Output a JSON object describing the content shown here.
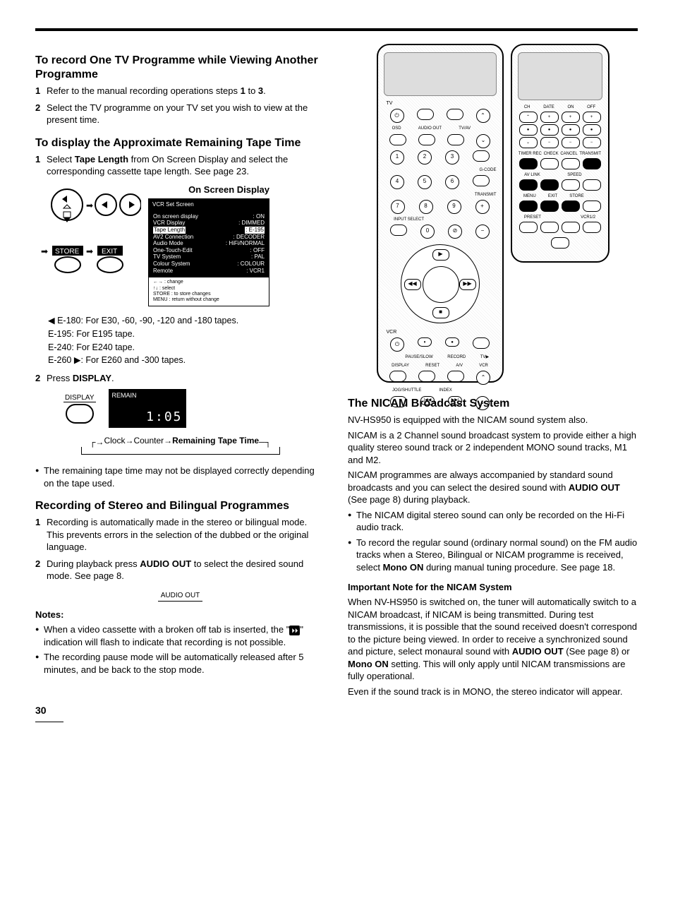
{
  "left": {
    "section1": {
      "title": "To record One TV Programme while Viewing Another Programme",
      "steps": [
        "Refer to the manual recording operations steps <b>1</b> to <b>3</b>.",
        "Select the TV programme on your TV set you wish to view at the present time."
      ]
    },
    "section2": {
      "title": "To display the Approximate Remaining Tape Time",
      "step1": "Select <b>Tape Length</b> from On Screen Display and select the corresponding cassette tape length. See page 23.",
      "osd_title": "On Screen Display",
      "osd_header": "VCR Set Screen",
      "osd_items": [
        {
          "l": "On screen display",
          "r": "ON"
        },
        {
          "l": "VCR Display",
          "r": "DIMMED"
        },
        {
          "l": "Tape Length",
          "r": "E-195",
          "hl": true
        },
        {
          "l": "AV2 Connection",
          "r": "DECODER"
        },
        {
          "l": "Audio Mode",
          "r": "HiFi/NORMAL"
        },
        {
          "l": "One-Touch-Edit",
          "r": "OFF"
        },
        {
          "l": "TV System",
          "r": "PAL"
        },
        {
          "l": "Colour System",
          "r": "COLOUR"
        },
        {
          "l": "Remote",
          "r": "VCR1"
        }
      ],
      "osd_footer": [
        "←→ : change",
        "↑↓ : select",
        "STORE : to store changes",
        "MENU : return without change"
      ],
      "store_label": "STORE",
      "exit_label": "EXIT",
      "tape_defs": [
        "◀ E-180: For E30, -60, -90, -120 and -180 tapes.",
        "   E-195: For E195 tape.",
        "   E-240: For E240 tape.",
        "E-260 ▶: For E260 and -300 tapes."
      ],
      "step2": "Press <b>DISPLAY</b>.",
      "display_label": "DISPLAY",
      "remain_label": "REMAIN",
      "remain_value": "1:05",
      "flow": "Clock→Counter→<b>Remaining Tape Time</b>",
      "note": "The remaining tape time may not be displayed correctly depending on the tape used."
    },
    "section3": {
      "title": "Recording of Stereo and Bilingual Programmes",
      "steps": [
        "Recording is automatically made in the stereo or bilingual mode. This prevents errors in the selection of the dubbed or the original language.",
        "During playback press <b>AUDIO OUT</b> to select the desired sound mode. See page 8."
      ],
      "audio_out_label": "AUDIO OUT",
      "notes_title": "Notes:",
      "notes": [
        "When a video cassette with a broken off tab is inserted, the \"<span class='tape-icon'>⏵⏵</span>\" indication will flash to indicate that recording is not possible.",
        "The recording pause mode will be automatically released after 5 minutes, and be back to the stop mode."
      ]
    }
  },
  "right": {
    "section_labels": {
      "tv": "TV",
      "osd": "OSD",
      "audio_out": "AUDIO OUT",
      "tvav": "TV/AV",
      "gcode": "G-CODE",
      "transmit": "TRANSMIT",
      "input_select": "INPUT SELECT",
      "vcr": "VCR",
      "pause": "PAUSE/SLOW",
      "record": "RECORD",
      "tv_play": "TV▶",
      "display": "DISPLAY",
      "reset": "RESET",
      "av": "A/V",
      "jog": "JOG/SHUTTLE",
      "index": "INDEX"
    },
    "flip_labels": {
      "ch": "CH",
      "date": "DATE",
      "on": "ON",
      "off": "OFF",
      "timer_rec": "TIMER REC",
      "check": "CHECK",
      "cancel": "CANCEL",
      "transmit": "TRANSMIT",
      "avlink": "AV LINK",
      "speed": "SPEED",
      "menu": "MENU",
      "exit": "EXIT",
      "store": "STORE",
      "preset": "PRESET",
      "vcr12": "VCR1/2"
    },
    "nicam": {
      "title": "The NICAM Broadcast System",
      "p1": "NV-HS950 is equipped with the NICAM sound system also.",
      "p2": "NICAM is a 2 Channel sound broadcast system to provide either a high quality stereo sound track or 2 independent MONO sound tracks, M1 and M2.",
      "p3": "NICAM programmes are always accompanied by standard sound broadcasts and you can select the desired sound with <b>AUDIO OUT</b> (See page 8) during playback.",
      "bullets": [
        "The NICAM digital stereo sound can only be recorded on the Hi-Fi audio track.",
        "To record the regular sound (ordinary normal sound) on the FM audio tracks when a Stereo, Bilingual or NICAM programme is received, select <b>Mono ON</b> during manual tuning procedure. See page 18."
      ],
      "important_title": "Important Note for the NICAM System",
      "important_body": "When NV-HS950 is switched on, the tuner will automatically switch to a NICAM broadcast, if NICAM is being transmitted. During test transmissions, it is possible that the sound received doesn't correspond to the picture being viewed. In order to receive a synchronized sound and picture, select monaural sound with <b>AUDIO OUT</b> (See page 8) or <b>Mono ON</b> setting. This will only apply until NICAM transmissions are fully operational.",
      "important_tail": "Even if the sound track is in MONO, the stereo indicator will appear."
    }
  },
  "page_number": "30"
}
